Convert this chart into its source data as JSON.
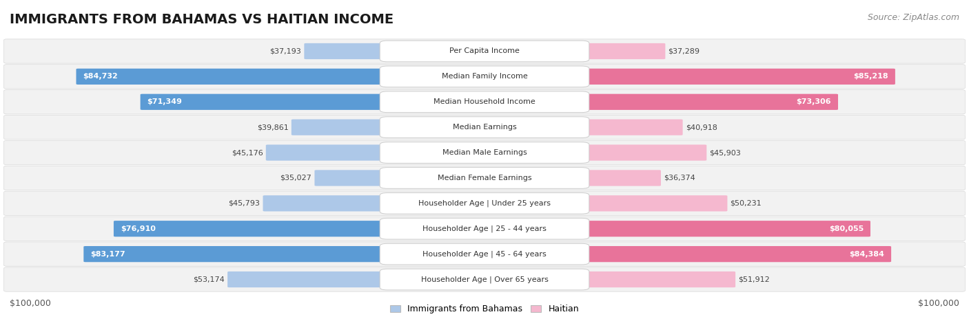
{
  "title": "IMMIGRANTS FROM BAHAMAS VS HAITIAN INCOME",
  "source": "Source: ZipAtlas.com",
  "categories": [
    "Per Capita Income",
    "Median Family Income",
    "Median Household Income",
    "Median Earnings",
    "Median Male Earnings",
    "Median Female Earnings",
    "Householder Age | Under 25 years",
    "Householder Age | 25 - 44 years",
    "Householder Age | 45 - 64 years",
    "Householder Age | Over 65 years"
  ],
  "bahamas_values": [
    37193,
    84732,
    71349,
    39861,
    45176,
    35027,
    45793,
    76910,
    83177,
    53174
  ],
  "haitian_values": [
    37289,
    85218,
    73306,
    40918,
    45903,
    36374,
    50231,
    80055,
    84384,
    51912
  ],
  "max_value": 100000,
  "bahamas_color_light": "#adc8e8",
  "bahamas_color_dark": "#5b9bd5",
  "haitian_color_light": "#f5b8cf",
  "haitian_color_dark": "#e8739a",
  "row_bg_color": "#f2f2f2",
  "row_border_color": "#d8d8d8",
  "center_label_bg": "#ffffff",
  "center_label_border": "#cccccc",
  "xlabel_left": "$100,000",
  "xlabel_right": "$100,000",
  "legend_bahamas": "Immigrants from Bahamas",
  "legend_haitian": "Haitian",
  "title_fontsize": 14,
  "source_fontsize": 9,
  "value_fontsize": 8,
  "category_fontsize": 8,
  "legend_fontsize": 9,
  "xlabel_fontsize": 9
}
